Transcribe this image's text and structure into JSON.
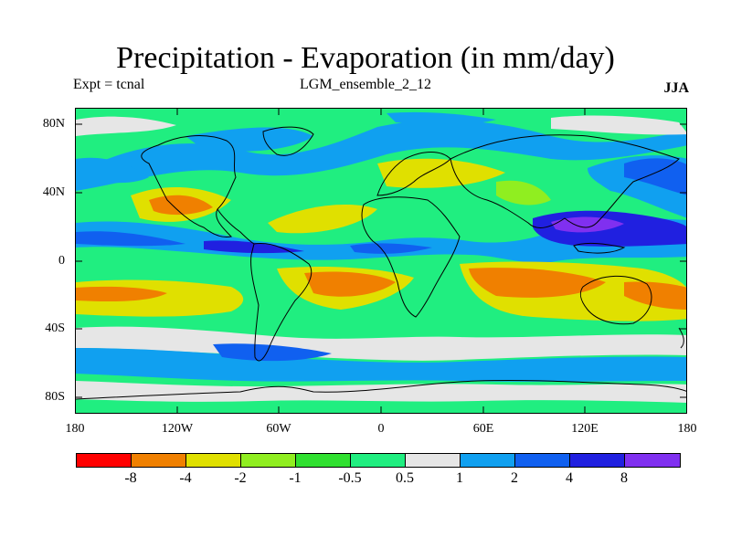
{
  "title": "Precipitation - Evaporation (in mm/day)",
  "expt_label": "Expt = tcnal",
  "run_label": "LGM_ensemble_2_12",
  "season_label": "JJA",
  "y_ticks": [
    "80N",
    "40N",
    "0",
    "40S",
    "80S"
  ],
  "x_ticks": [
    "180",
    "120W",
    "60W",
    "0",
    "60E",
    "120E",
    "180"
  ],
  "colorbar": {
    "colors": [
      "#ff0000",
      "#f08000",
      "#e0e000",
      "#90ee20",
      "#30e030",
      "#20ee80",
      "#e6e6e6",
      "#10a0f0",
      "#1060f0",
      "#2020e0",
      "#8030f0"
    ],
    "labels": [
      "-8",
      "-4",
      "-2",
      "-1",
      "-0.5",
      "0.5",
      "1",
      "2",
      "4",
      "8"
    ]
  },
  "map": {
    "projection": "cylindrical equidistant",
    "lon_range": [
      -180,
      180
    ],
    "lat_range": [
      -90,
      90
    ],
    "background_color": "#20ee80",
    "coastline_color": "#000000"
  }
}
